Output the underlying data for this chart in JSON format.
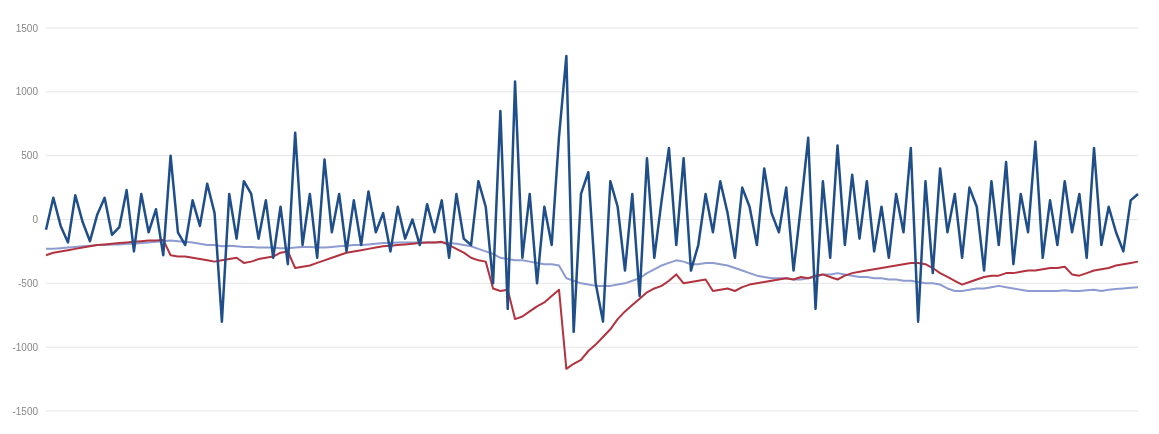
{
  "chart_data": {
    "type": "line",
    "categories": [
      null,
      null,
      null,
      null,
      null,
      null,
      null,
      null,
      null,
      null,
      null,
      null,
      null,
      null,
      null,
      null,
      null,
      null,
      null,
      null,
      null,
      null,
      null,
      null,
      null,
      null,
      null,
      null,
      null,
      null,
      null,
      null,
      null,
      null,
      null,
      null,
      null,
      null,
      null,
      null,
      null,
      null,
      null,
      null,
      null,
      null,
      null,
      null,
      null,
      null,
      null,
      null,
      null,
      null,
      null,
      null,
      null,
      null,
      null,
      null,
      null,
      null,
      null,
      null,
      null,
      null,
      null,
      null,
      null,
      null,
      null,
      null,
      null,
      null,
      null,
      null,
      null,
      null,
      null,
      null,
      null,
      null,
      null,
      null,
      null,
      null,
      null,
      null,
      null,
      null,
      null,
      null,
      null,
      null,
      null,
      null,
      null,
      null,
      null,
      null,
      null,
      null,
      null,
      null,
      null,
      null,
      null,
      null,
      null,
      null,
      null,
      null,
      null,
      null,
      null,
      null,
      null,
      null,
      null,
      null,
      null,
      null,
      null,
      null,
      null,
      null,
      null,
      null,
      null,
      null,
      null,
      null,
      null,
      null,
      null,
      null,
      null,
      null,
      null,
      null,
      null,
      null,
      null,
      null,
      null,
      null,
      null,
      null,
      null,
      null
    ],
    "series": [
      {
        "color": "#8e9bd0",
        "values": [
          -230,
          -230,
          -225,
          -220,
          -215,
          -210,
          -205,
          -200,
          -200,
          -195,
          -195,
          -190,
          -190,
          -185,
          -180,
          -175,
          -170,
          -165,
          -170,
          -175,
          -180,
          -190,
          -200,
          -200,
          -210,
          -205,
          -210,
          -215,
          -215,
          -220,
          -220,
          -220,
          -225,
          -225,
          -220,
          -215,
          -215,
          -220,
          -220,
          -215,
          -210,
          -205,
          -200,
          -200,
          -195,
          -190,
          -185,
          -185,
          -180,
          -180,
          -180,
          -180,
          -180,
          -180,
          -180,
          -185,
          -190,
          -200,
          -210,
          -230,
          -250,
          -270,
          -300,
          -310,
          -320,
          -320,
          -330,
          -340,
          -350,
          -350,
          -360,
          -460,
          -480,
          -500,
          -510,
          -520,
          -520,
          -520,
          -510,
          -500,
          -480,
          -460,
          -420,
          -390,
          -360,
          -340,
          -320,
          -330,
          -350,
          -350,
          -340,
          -340,
          -350,
          -360,
          -380,
          -400,
          -420,
          -440,
          -450,
          -460,
          -460,
          -460,
          -470,
          -470,
          -460,
          -450,
          -430,
          -430,
          -420,
          -430,
          -440,
          -450,
          -450,
          -460,
          -460,
          -470,
          -470,
          -480,
          -480,
          -490,
          -500,
          -500,
          -510,
          -540,
          -560,
          -560,
          -550,
          -540,
          -540,
          -530,
          -520,
          -530,
          -540,
          -550,
          -560,
          -560,
          -560,
          -560,
          -560,
          -555,
          -560,
          -560,
          -555,
          -550,
          -560,
          -550,
          -545,
          -540,
          -535,
          -530
        ]
      },
      {
        "color": "#b2333f",
        "values": [
          -280,
          -260,
          -250,
          -240,
          -230,
          -220,
          -210,
          -200,
          -195,
          -190,
          -185,
          -180,
          -175,
          -170,
          -165,
          -165,
          -160,
          -280,
          -290,
          -290,
          -300,
          -310,
          -320,
          -330,
          -320,
          -310,
          -300,
          -340,
          -330,
          -310,
          -300,
          -290,
          -260,
          -250,
          -380,
          -370,
          -360,
          -340,
          -320,
          -300,
          -280,
          -260,
          -250,
          -240,
          -230,
          -220,
          -210,
          -205,
          -200,
          -195,
          -190,
          -185,
          -180,
          -180,
          -175,
          -200,
          -230,
          -260,
          -300,
          -320,
          -330,
          -540,
          -560,
          -550,
          -780,
          -760,
          -720,
          -680,
          -650,
          -600,
          -550,
          -1170,
          -1130,
          -1100,
          -1030,
          -980,
          -920,
          -860,
          -780,
          -720,
          -670,
          -620,
          -570,
          -540,
          -520,
          -480,
          -430,
          -500,
          -490,
          -480,
          -470,
          -560,
          -550,
          -540,
          -560,
          -530,
          -510,
          -500,
          -490,
          -480,
          -470,
          -460,
          -470,
          -450,
          -460,
          -440,
          -430,
          -450,
          -470,
          -440,
          -420,
          -410,
          -400,
          -390,
          -380,
          -370,
          -360,
          -350,
          -340,
          -340,
          -350,
          -380,
          -420,
          -450,
          -480,
          -510,
          -490,
          -470,
          -450,
          -440,
          -440,
          -420,
          -420,
          -410,
          -400,
          -400,
          -390,
          -380,
          -380,
          -370,
          -430,
          -440,
          -420,
          -400,
          -390,
          -380,
          -360,
          -350,
          -340,
          -330
        ]
      },
      {
        "color": "#1f4e89",
        "values": [
          -80,
          170,
          -50,
          -180,
          190,
          -20,
          -170,
          40,
          170,
          -120,
          -60,
          230,
          -250,
          200,
          -100,
          80,
          -280,
          500,
          -100,
          -200,
          150,
          -50,
          280,
          50,
          -800,
          200,
          -150,
          300,
          200,
          -150,
          150,
          -300,
          100,
          -350,
          680,
          -200,
          200,
          -300,
          470,
          -100,
          200,
          -250,
          150,
          -200,
          220,
          -100,
          50,
          -250,
          100,
          -150,
          0,
          -200,
          120,
          -100,
          150,
          -300,
          200,
          -150,
          -200,
          300,
          100,
          -500,
          850,
          -700,
          1080,
          -300,
          200,
          -500,
          100,
          -200,
          650,
          1280,
          -880,
          200,
          370,
          -500,
          -800,
          300,
          100,
          -400,
          200,
          -600,
          480,
          -300,
          150,
          560,
          -200,
          480,
          -400,
          -200,
          200,
          -100,
          300,
          50,
          -300,
          250,
          100,
          -200,
          400,
          50,
          -100,
          250,
          -400,
          100,
          640,
          -700,
          300,
          -300,
          580,
          -200,
          350,
          -150,
          300,
          -250,
          100,
          -300,
          200,
          -100,
          560,
          -800,
          300,
          -420,
          400,
          -100,
          200,
          -300,
          250,
          100,
          -400,
          300,
          -200,
          450,
          -350,
          200,
          -100,
          610,
          -300,
          150,
          -200,
          300,
          -100,
          200,
          -300,
          560,
          -200,
          100,
          -100,
          -250,
          150,
          200
        ]
      }
    ],
    "ylim": [
      -1500,
      1500
    ],
    "yticks": [
      -1500,
      -1000,
      -500,
      0,
      500,
      1000,
      1500
    ],
    "grid": "y",
    "tick_labels": "y",
    "marker": "none",
    "line_style": "solid"
  }
}
